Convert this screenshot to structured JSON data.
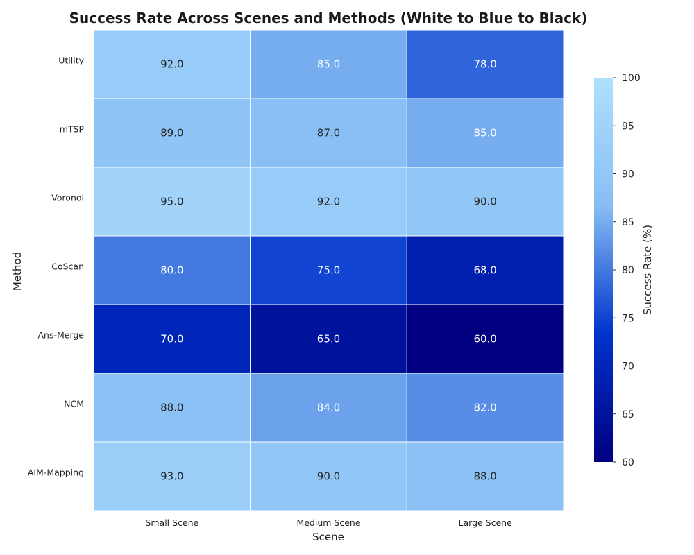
{
  "chart_data": {
    "type": "heatmap",
    "title": "Success Rate Across Scenes and Methods (White to Blue to Black)",
    "xlabel": "Scene",
    "ylabel": "Method",
    "x_categories": [
      "Small Scene",
      "Medium Scene",
      "Large Scene"
    ],
    "y_categories": [
      "Utility",
      "mTSP",
      "Voronoi",
      "CoScan",
      "Ans-Merge",
      "NCM",
      "AIM-Mapping"
    ],
    "values": [
      [
        92.0,
        85.0,
        78.0
      ],
      [
        89.0,
        87.0,
        85.0
      ],
      [
        95.0,
        92.0,
        90.0
      ],
      [
        80.0,
        75.0,
        68.0
      ],
      [
        70.0,
        65.0,
        60.0
      ],
      [
        88.0,
        84.0,
        82.0
      ],
      [
        93.0,
        90.0,
        88.0
      ]
    ],
    "value_format": "one decimal",
    "colorbar": {
      "label": "Success Rate (%)",
      "range": [
        60,
        100
      ],
      "ticks": [
        60,
        65,
        70,
        75,
        80,
        85,
        90,
        95,
        100
      ],
      "colors": [
        "#000080",
        "#0033CC",
        "#87BEF4",
        "#B0E0FF"
      ]
    },
    "grid": true
  }
}
